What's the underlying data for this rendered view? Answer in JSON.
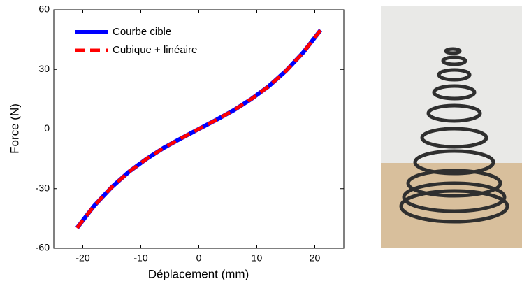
{
  "chart_data": {
    "type": "line",
    "x_label": "Déplacement (mm)",
    "y_label": "Force (N)",
    "x": [
      -21,
      -18,
      -15,
      -12,
      -9,
      -6,
      -3,
      0,
      3,
      6,
      9,
      12,
      15,
      18,
      21
    ],
    "series": [
      {
        "name": "Courbe cible",
        "color": "#0000ff",
        "style": "solid",
        "values": [
          -49.8,
          -38.5,
          -29.2,
          -21.4,
          -15.0,
          -9.4,
          -4.6,
          0,
          4.6,
          9.4,
          15.0,
          21.4,
          29.2,
          38.5,
          49.8
        ]
      },
      {
        "name": "Cubique + linéaire",
        "color": "#ff0000",
        "style": "dashed",
        "values": [
          -49.8,
          -38.5,
          -29.2,
          -21.4,
          -15.0,
          -9.4,
          -4.6,
          0,
          4.6,
          9.4,
          15.0,
          21.4,
          29.2,
          38.5,
          49.8
        ]
      }
    ],
    "xlim": [
      -25,
      25
    ],
    "xticks": [
      -20,
      -10,
      0,
      10,
      20
    ],
    "ylim": [
      -60,
      60
    ],
    "yticks": [
      -60,
      -30,
      0,
      30,
      60
    ],
    "legend": "upper left",
    "grid": false
  }
}
